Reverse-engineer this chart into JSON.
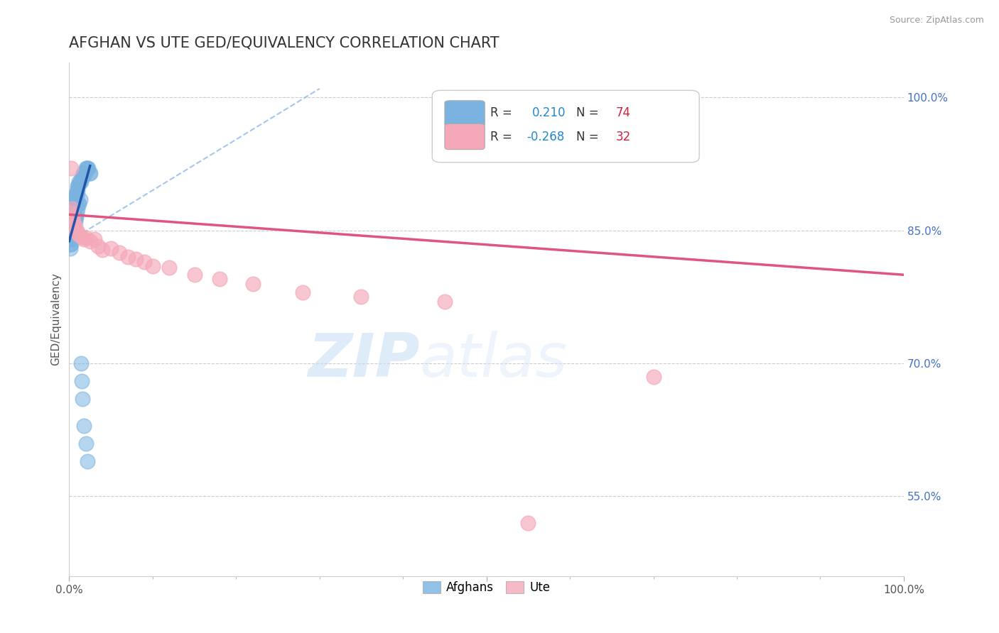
{
  "title": "AFGHAN VS UTE GED/EQUIVALENCY CORRELATION CHART",
  "source_text": "Source: ZipAtlas.com",
  "ylabel": "GED/Equivalency",
  "watermark_zip": "ZIP",
  "watermark_atlas": "atlas",
  "xlim": [
    0.0,
    1.0
  ],
  "ylim": [
    0.46,
    1.04
  ],
  "yticks": [
    0.55,
    0.7,
    0.85,
    1.0
  ],
  "ytick_labels": [
    "55.0%",
    "70.0%",
    "85.0%",
    "100.0%"
  ],
  "xtick_labels": [
    "0.0%",
    "100.0%"
  ],
  "afghan_R": 0.21,
  "afghan_N": 74,
  "ute_R": -0.268,
  "ute_N": 32,
  "afghan_color": "#7ab3e0",
  "ute_color": "#f4a8b8",
  "afghan_line_color": "#2255aa",
  "ute_line_color": "#e05580",
  "dashed_line_color": "#8fb8e8",
  "title_fontsize": 15,
  "label_fontsize": 11,
  "tick_fontsize": 11,
  "right_tick_color": "#4472c4",
  "background_color": "#ffffff",
  "afghan_x": [
    0.001,
    0.001,
    0.001,
    0.001,
    0.001,
    0.002,
    0.002,
    0.002,
    0.002,
    0.002,
    0.003,
    0.003,
    0.003,
    0.003,
    0.004,
    0.004,
    0.004,
    0.004,
    0.005,
    0.005,
    0.005,
    0.006,
    0.006,
    0.006,
    0.007,
    0.007,
    0.007,
    0.008,
    0.008,
    0.009,
    0.009,
    0.01,
    0.01,
    0.011,
    0.012,
    0.013,
    0.014,
    0.015,
    0.016,
    0.017,
    0.018,
    0.019,
    0.02,
    0.021,
    0.022,
    0.023,
    0.024,
    0.025,
    0.001,
    0.001,
    0.002,
    0.002,
    0.003,
    0.003,
    0.004,
    0.004,
    0.005,
    0.005,
    0.006,
    0.006,
    0.007,
    0.007,
    0.008,
    0.009,
    0.01,
    0.011,
    0.012,
    0.013,
    0.014,
    0.015,
    0.016,
    0.018,
    0.02,
    0.022
  ],
  "afghan_y": [
    0.84,
    0.85,
    0.855,
    0.86,
    0.865,
    0.855,
    0.86,
    0.865,
    0.87,
    0.875,
    0.86,
    0.865,
    0.87,
    0.875,
    0.865,
    0.87,
    0.875,
    0.88,
    0.87,
    0.875,
    0.88,
    0.875,
    0.88,
    0.885,
    0.88,
    0.885,
    0.89,
    0.885,
    0.89,
    0.89,
    0.895,
    0.895,
    0.9,
    0.9,
    0.905,
    0.905,
    0.905,
    0.91,
    0.91,
    0.915,
    0.915,
    0.915,
    0.92,
    0.92,
    0.92,
    0.92,
    0.915,
    0.915,
    0.83,
    0.835,
    0.835,
    0.84,
    0.84,
    0.845,
    0.845,
    0.85,
    0.85,
    0.855,
    0.855,
    0.86,
    0.86,
    0.865,
    0.865,
    0.87,
    0.875,
    0.88,
    0.88,
    0.885,
    0.7,
    0.68,
    0.66,
    0.63,
    0.61,
    0.59
  ],
  "ute_x": [
    0.001,
    0.002,
    0.003,
    0.004,
    0.005,
    0.006,
    0.007,
    0.008,
    0.01,
    0.012,
    0.015,
    0.018,
    0.02,
    0.025,
    0.03,
    0.035,
    0.04,
    0.05,
    0.06,
    0.07,
    0.08,
    0.09,
    0.1,
    0.12,
    0.15,
    0.18,
    0.22,
    0.28,
    0.35,
    0.45,
    0.55,
    0.7
  ],
  "ute_y": [
    0.87,
    0.92,
    0.875,
    0.865,
    0.86,
    0.855,
    0.855,
    0.85,
    0.848,
    0.845,
    0.843,
    0.84,
    0.842,
    0.838,
    0.84,
    0.832,
    0.828,
    0.83,
    0.825,
    0.82,
    0.818,
    0.815,
    0.81,
    0.808,
    0.8,
    0.795,
    0.79,
    0.78,
    0.775,
    0.77,
    0.52,
    0.685
  ],
  "ute_line_x0": 0.0,
  "ute_line_y0": 0.868,
  "ute_line_x1": 1.0,
  "ute_line_y1": 0.8,
  "afghan_line_x0": 0.0,
  "afghan_line_y0": 0.838,
  "afghan_line_x1": 0.025,
  "afghan_line_y1": 0.923,
  "dash_line_x0": 0.0,
  "dash_line_y0": 0.838,
  "dash_line_x1": 0.3,
  "dash_line_y1": 1.01
}
